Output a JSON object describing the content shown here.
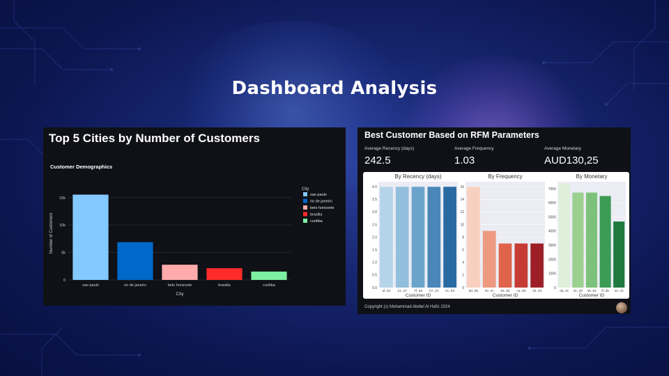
{
  "page_title": "Dashboard Analysis",
  "left_panel": {
    "title": "Top 5 Cities by Number of Customers",
    "subtitle": "Customer Demographics"
  },
  "right_panel": {
    "title": "Best Customer Based on RFM Parameters",
    "metrics": [
      {
        "label": "Average Recency (days)",
        "value": "242.5"
      },
      {
        "label": "Average Frequency",
        "value": "1.03"
      },
      {
        "label": "Average Monetary",
        "value": "AUD130,25"
      }
    ],
    "copyright": "Copyright (c) Muhammad Abdiel Al Hafiz 2024"
  },
  "chart_data": [
    {
      "type": "bar",
      "title": "Customer Demographics",
      "xlabel": "City",
      "ylabel": "Number of Customers",
      "categories": [
        "sao paulo",
        "rio de janeiro",
        "belo horizonte",
        "brasilia",
        "curitiba"
      ],
      "values": [
        15540,
        6880,
        2770,
        2130,
        1520
      ],
      "colors": [
        "#83c9ff",
        "#0068c9",
        "#ffabab",
        "#ff2b2b",
        "#7defa1"
      ],
      "ylim": [
        0,
        17000
      ],
      "yticks": [
        0,
        5000,
        10000,
        15000
      ],
      "ytick_labels": [
        "0",
        "5k",
        "10k",
        "15k"
      ],
      "legend": {
        "title": "City",
        "position": "top-right"
      },
      "grid": true
    },
    {
      "type": "bar",
      "title": "By Recency (days)",
      "xlabel": "Customer ID",
      "categories": [
        "af..52",
        "21..a7",
        "7f..38",
        "b7..21",
        "0c..93"
      ],
      "values": [
        4.0,
        4.0,
        4.0,
        4.0,
        4.0
      ],
      "colors": [
        "#b5d4e9",
        "#92bfdc",
        "#6ba4cb",
        "#4a87b8",
        "#2a6aa3"
      ],
      "ylim": [
        0,
        4.2
      ],
      "yticks": [
        0,
        0.5,
        1.0,
        1.5,
        2.0,
        2.5,
        3.0,
        3.5,
        4.0
      ],
      "ytick_labels": [
        "0.0",
        "0.5",
        "1.0",
        "1.5",
        "2.0",
        "2.5",
        "3.0",
        "3.5",
        "4.0"
      ]
    },
    {
      "type": "bar",
      "title": "By Frequency",
      "xlabel": "Customer ID",
      "categories": [
        "8d..55",
        "3e..4c",
        "64..82",
        "ca..68",
        "1b..33"
      ],
      "values": [
        16,
        9,
        7,
        7,
        7
      ],
      "colors": [
        "#f9d0c0",
        "#ee9a80",
        "#e0644a",
        "#c63c35",
        "#9d2028"
      ],
      "ylim": [
        0,
        16.8
      ],
      "yticks": [
        0,
        2,
        4,
        6,
        8,
        10,
        12,
        14,
        16
      ],
      "ytick_labels": [
        "0",
        "2",
        "4",
        "6",
        "8",
        "10",
        "12",
        "14",
        "16"
      ]
    },
    {
      "type": "bar",
      "title": "By Monetary",
      "xlabel": "Customer ID",
      "categories": [
        "da..0c",
        "dc..26",
        "45..62",
        "ff..d6",
        "ee..cb"
      ],
      "values": [
        7380,
        6730,
        6730,
        6490,
        4680
      ],
      "colors": [
        "#dff0da",
        "#9bd08f",
        "#7dc27a",
        "#3c9b55",
        "#1e7a3e"
      ],
      "ylim": [
        0,
        7500
      ],
      "yticks": [
        0,
        1000,
        2000,
        3000,
        4000,
        5000,
        6000,
        7000
      ],
      "ytick_labels": [
        "0",
        "1000",
        "2000",
        "3000",
        "4000",
        "5000",
        "6000",
        "7000"
      ]
    }
  ]
}
